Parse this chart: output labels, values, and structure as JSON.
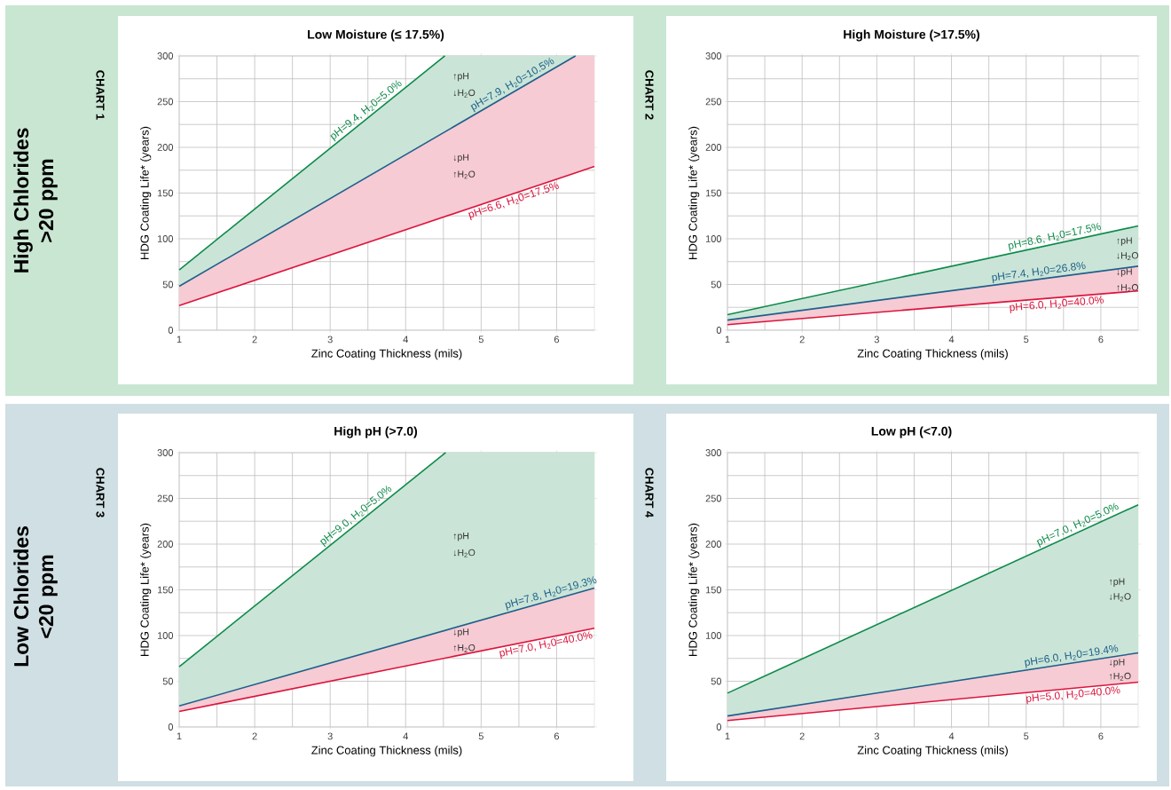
{
  "chart_data": [
    {
      "type": "line",
      "title": "Low Moisture (≤ 17.5%)",
      "xlabel": "Zinc Coating Thickness (mils)",
      "ylabel": "HDG Coating Life* (years)",
      "xlim": [
        1,
        6.5
      ],
      "ylim": [
        0,
        300
      ],
      "xticks": [
        1,
        2,
        3,
        4,
        5,
        6
      ],
      "yticks": [
        0,
        50,
        100,
        150,
        200,
        250,
        300
      ],
      "grid": true,
      "annotations": [
        "High Chlorides >20 ppm",
        "CHART 1",
        "↑pH",
        "↓H$_{2}$O",
        "↓pH",
        "↑H$_{2}$O"
      ],
      "series": [
        {
          "name": "pH=9.4, H$_{2}$0=5.0%",
          "color": "#0e8a4a",
          "x": [
            1,
            4.52,
            6.25
          ],
          "values": [
            66,
            300,
            null
          ],
          "lower": [
            48,
            217,
            300
          ],
          "upper": [
            66,
            300,
            300
          ]
        },
        {
          "name": "pH=7.9, H$_{2}$0=10.5%",
          "color": "#1f5f8b",
          "x": [
            1,
            6.25
          ],
          "values": [
            48,
            300
          ]
        },
        {
          "name": "pH=6.6, H$_{2}$0=17.5%",
          "color": "#dc143c",
          "x": [
            1,
            6.25,
            6.5
          ],
          "values": [
            27,
            172,
            179
          ],
          "lower": [
            27,
            172,
            179
          ],
          "upper": [
            48,
            300,
            300
          ]
        }
      ]
    },
    {
      "type": "line",
      "title": "High Moisture (>17.5%)",
      "xlabel": "Zinc Coating Thickness (mils)",
      "ylabel": "HDG Coating Life* (years)",
      "xlim": [
        1,
        6.5
      ],
      "ylim": [
        0,
        300
      ],
      "xticks": [
        1,
        2,
        3,
        4,
        5,
        6
      ],
      "yticks": [
        0,
        50,
        100,
        150,
        200,
        250,
        300
      ],
      "grid": true,
      "annotations": [
        "CHART 2",
        "↑pH",
        "↓H$_{2}$O",
        "↓pH",
        "↑H$_{2}$O"
      ],
      "series": [
        {
          "name": "pH=8.6, H$_{2}$0=17.5%",
          "color": "#0e8a4a",
          "x": [
            1,
            6.5
          ],
          "values": [
            17,
            114
          ],
          "lower": [
            11,
            70
          ],
          "upper": [
            17,
            114
          ]
        },
        {
          "name": "pH=7.4, H$_{2}$0=26.8%",
          "color": "#1f5f8b",
          "x": [
            1,
            6.5
          ],
          "values": [
            11,
            70
          ]
        },
        {
          "name": "pH=6.0, H$_{2}$0=40.0%",
          "color": "#dc143c",
          "x": [
            1,
            6.5
          ],
          "values": [
            6,
            43
          ],
          "lower": [
            6,
            43
          ],
          "upper": [
            11,
            70
          ]
        }
      ]
    },
    {
      "type": "line",
      "title": "High pH (>7.0)",
      "xlabel": "Zinc Coating Thickness (mils)",
      "ylabel": "HDG Coating Life* (years)",
      "xlim": [
        1,
        6.5
      ],
      "ylim": [
        0,
        300
      ],
      "xticks": [
        1,
        2,
        3,
        4,
        5,
        6
      ],
      "yticks": [
        0,
        50,
        100,
        150,
        200,
        250,
        300
      ],
      "grid": true,
      "annotations": [
        "Low Chlorides <20 ppm",
        "CHART 3",
        "↑pH",
        "↓H$_{2}$O",
        "↓pH",
        "↑H$_{2}$O"
      ],
      "series": [
        {
          "name": "pH=9.0, H$_{2}$0=5.0%",
          "color": "#0e8a4a",
          "x": [
            1,
            4.53,
            6.5
          ],
          "values": [
            66,
            300,
            null
          ],
          "lower": [
            23,
            106,
            152
          ],
          "upper": [
            66,
            300,
            300
          ]
        },
        {
          "name": "pH=7.8, H$_{2}$0=19.3%",
          "color": "#1f5f8b",
          "x": [
            1,
            6.5
          ],
          "values": [
            23,
            152
          ]
        },
        {
          "name": "pH=7.0, H$_{2}$0=40.0%",
          "color": "#dc143c",
          "x": [
            1,
            6.5
          ],
          "values": [
            17,
            108
          ],
          "lower": [
            17,
            108
          ],
          "upper": [
            23,
            152
          ]
        }
      ]
    },
    {
      "type": "line",
      "title": "Low pH (<7.0)",
      "xlabel": "Zinc Coating Thickness (mils)",
      "ylabel": "HDG Coating Life* (years)",
      "xlim": [
        1,
        6.5
      ],
      "ylim": [
        0,
        300
      ],
      "xticks": [
        1,
        2,
        3,
        4,
        5,
        6
      ],
      "yticks": [
        0,
        50,
        100,
        150,
        200,
        250,
        300
      ],
      "grid": true,
      "annotations": [
        "CHART 4",
        "↑pH",
        "↓H$_{2}$O",
        "↓pH",
        "↑H$_{2}$O"
      ],
      "series": [
        {
          "name": "pH=7.0, H$_{2}$0=5.0%",
          "color": "#0e8a4a",
          "x": [
            1,
            6.5
          ],
          "values": [
            37,
            243
          ],
          "lower": [
            12,
            81
          ],
          "upper": [
            37,
            243
          ]
        },
        {
          "name": "pH=6.0, H$_{2}$0=19.4%",
          "color": "#1f5f8b",
          "x": [
            1,
            6.5
          ],
          "values": [
            12,
            81
          ]
        },
        {
          "name": "pH=5.0, H$_{2}$0=40.0%",
          "color": "#dc143c",
          "x": [
            1,
            6.5
          ],
          "values": [
            7,
            49
          ],
          "lower": [
            7,
            49
          ],
          "upper": [
            12,
            81
          ]
        }
      ]
    }
  ]
}
